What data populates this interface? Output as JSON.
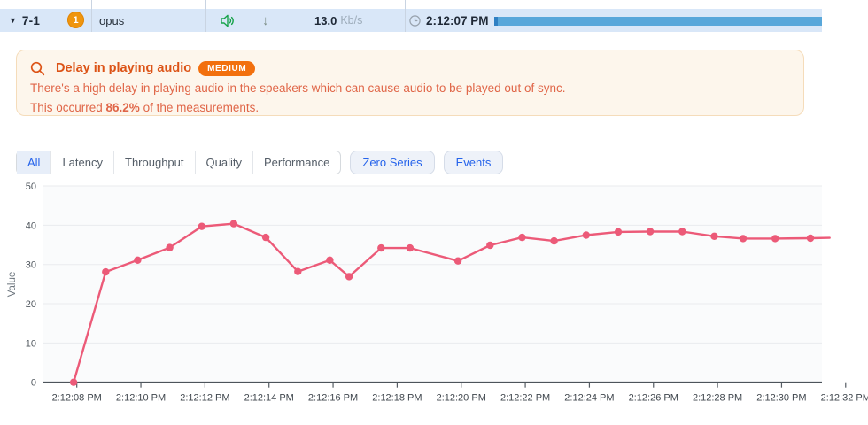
{
  "stream_row": {
    "caret": "▼",
    "stream_id": "7-1",
    "badge_count": "1",
    "codec": "opus",
    "speaker_icon": "speaker-audio-icon",
    "direction_icon": "down-arrow-icon",
    "direction_glyph": "↓",
    "bitrate_value": "13.0",
    "bitrate_unit": "Kb/s",
    "clock_icon": "clock-icon",
    "timestamp": "2:12:07 PM"
  },
  "alert": {
    "search_icon": "magnifier-icon",
    "title": "Delay in playing audio",
    "severity": "MEDIUM",
    "line1": "There's a high delay in playing audio in the speakers which can cause audio to be played out of sync.",
    "line2_prefix": "This occurred ",
    "line2_value": "86.2%",
    "line2_suffix": " of the measurements."
  },
  "filters": {
    "segments": [
      "All",
      "Latency",
      "Throughput",
      "Quality",
      "Performance"
    ],
    "active_segment": "All",
    "toggle_buttons": [
      "Zero Series",
      "Events"
    ]
  },
  "chart_data": {
    "type": "line",
    "ylabel": "Value",
    "ylim": [
      0,
      50
    ],
    "yticks": [
      0,
      10,
      20,
      30,
      40,
      50
    ],
    "grid": true,
    "x_unit": "seconds after 2:12:08 PM",
    "x_tick_interval_seconds": 2,
    "x_tick_labels": [
      "2:12:08 PM",
      "2:12:10 PM",
      "2:12:12 PM",
      "2:12:14 PM",
      "2:12:16 PM",
      "2:12:18 PM",
      "2:12:20 PM",
      "2:12:22 PM",
      "2:12:24 PM",
      "2:12:26 PM",
      "2:12:28 PM",
      "2:12:30 PM",
      "2:12:32 PM"
    ],
    "series": [
      {
        "name": "Value",
        "points": [
          {
            "t": -0.1,
            "v": 0
          },
          {
            "t": 0.9,
            "v": 28.1
          },
          {
            "t": 1.9,
            "v": 31.1
          },
          {
            "t": 2.9,
            "v": 34.3
          },
          {
            "t": 3.9,
            "v": 39.7
          },
          {
            "t": 4.9,
            "v": 40.4
          },
          {
            "t": 5.9,
            "v": 36.9
          },
          {
            "t": 6.9,
            "v": 28.2
          },
          {
            "t": 7.9,
            "v": 31.1
          },
          {
            "t": 8.5,
            "v": 26.9
          },
          {
            "t": 9.5,
            "v": 34.2
          },
          {
            "t": 10.4,
            "v": 34.2
          },
          {
            "t": 11.9,
            "v": 30.9
          },
          {
            "t": 12.9,
            "v": 34.9
          },
          {
            "t": 13.9,
            "v": 36.9
          },
          {
            "t": 14.9,
            "v": 36.0
          },
          {
            "t": 15.9,
            "v": 37.5
          },
          {
            "t": 16.9,
            "v": 38.3
          },
          {
            "t": 17.9,
            "v": 38.4
          },
          {
            "t": 18.9,
            "v": 38.4
          },
          {
            "t": 19.9,
            "v": 37.2
          },
          {
            "t": 20.8,
            "v": 36.6
          },
          {
            "t": 21.8,
            "v": 36.6
          },
          {
            "t": 22.9,
            "v": 36.7
          }
        ],
        "line_extension": {
          "t": 23.5,
          "v": 36.8
        }
      }
    ]
  },
  "colors": {
    "row_highlight": "#d9e7f8",
    "badge_orange": "#ef950e",
    "icon_green": "#17a34a",
    "arrow_gray_green": "#7c8e86",
    "progress_blue": "#58a7da",
    "progress_cap_blue": "#2f80c3",
    "alert_bg": "#fdf6ec",
    "alert_border": "#f5dcba",
    "alert_title": "#dc5316",
    "alert_body": "#e06648",
    "severity_badge": "#f2700e",
    "active_tab_blue": "#2563eb",
    "series_pink": "#ec5a78",
    "gridline": "#e9ebee",
    "axis": "#4d545b"
  }
}
